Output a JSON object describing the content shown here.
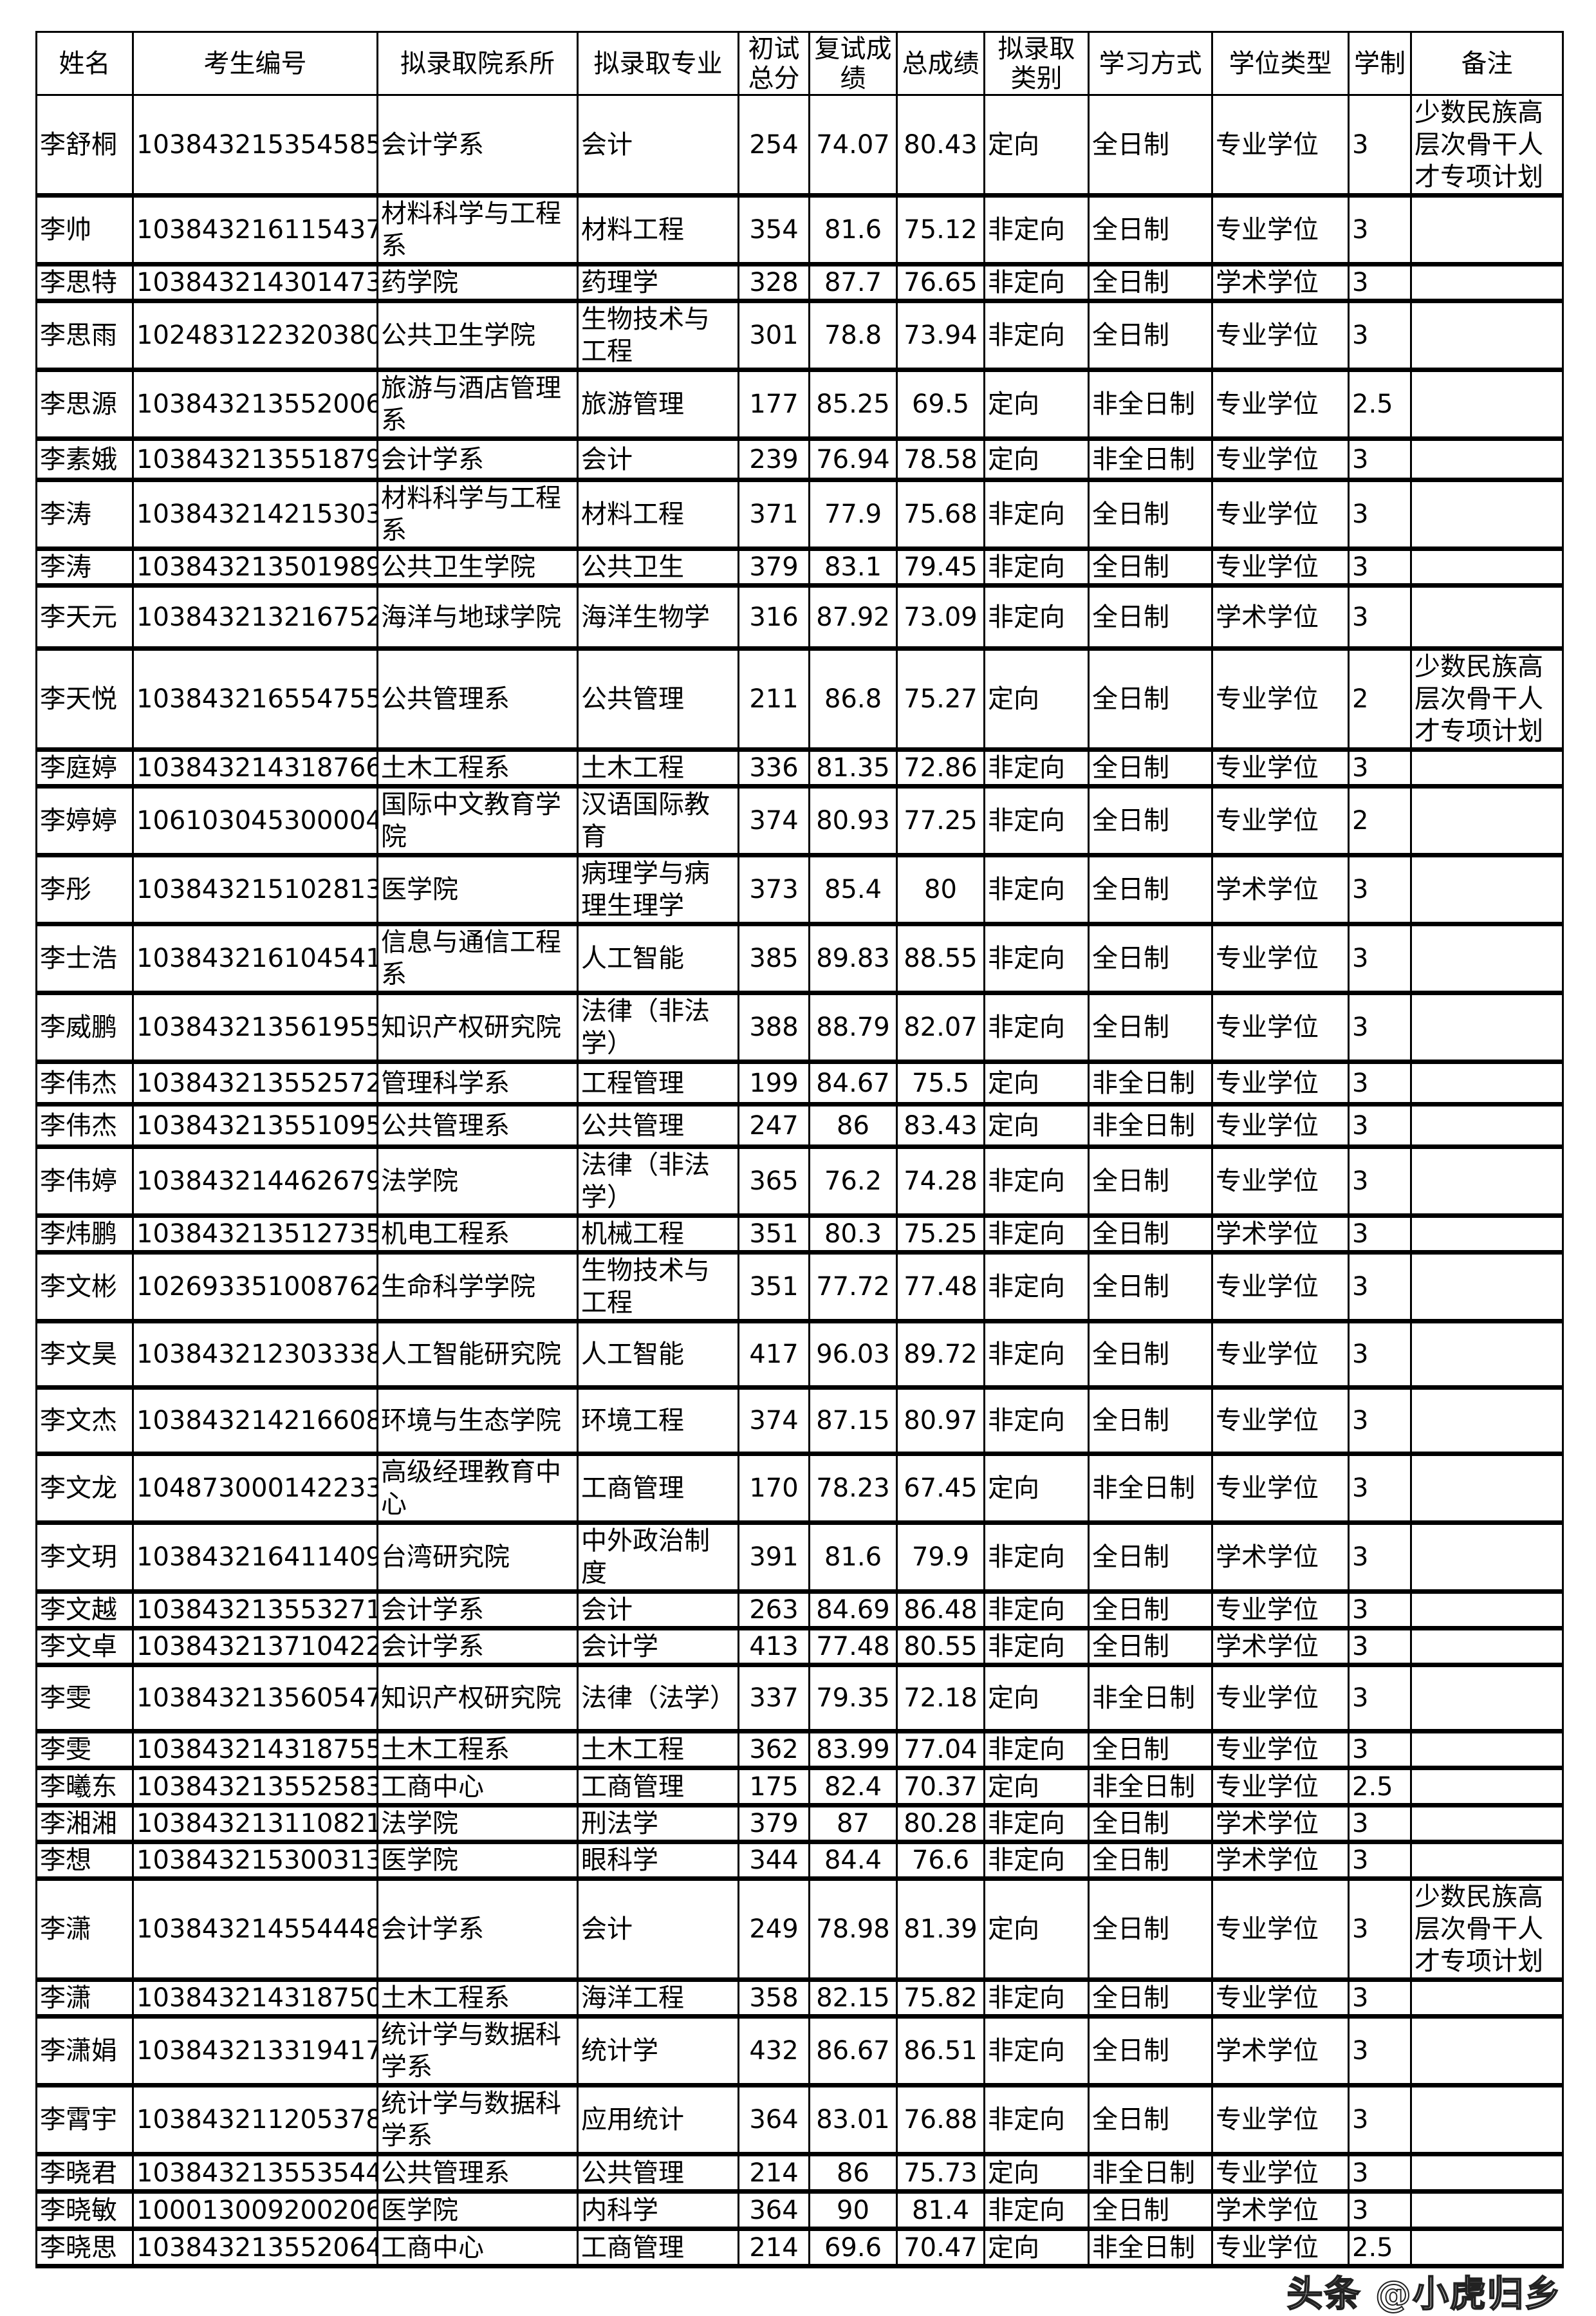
{
  "headers": [
    "姓名",
    "考生编号",
    "拟录取院系所",
    "拟录取专业",
    "初试总分",
    "复试成绩",
    "总成绩",
    "拟录取类别",
    "学习方式",
    "学位类型",
    "学制",
    "备注"
  ],
  "rows": [
    [
      "李舒桐",
      "103843215354585",
      "会计学系",
      "会计",
      "254",
      "74.07",
      "80.43",
      "定向",
      "全日制",
      "专业学位",
      "3",
      "少数民族高层次骨干人才专项计划"
    ],
    [
      "李帅",
      "103843216115437",
      "材料科学与工程系",
      "材料工程",
      "354",
      "81.6",
      "75.12",
      "非定向",
      "全日制",
      "专业学位",
      "3",
      ""
    ],
    [
      "李思特",
      "103843214301473",
      "药学院",
      "药理学",
      "328",
      "87.7",
      "76.65",
      "非定向",
      "全日制",
      "学术学位",
      "3",
      ""
    ],
    [
      "李思雨",
      "102483122320380",
      "公共卫生学院",
      "生物技术与工程",
      "301",
      "78.8",
      "73.94",
      "非定向",
      "全日制",
      "专业学位",
      "3",
      ""
    ],
    [
      "李思源",
      "103843213552006",
      "旅游与酒店管理系",
      "旅游管理",
      "177",
      "85.25",
      "69.5",
      "定向",
      "非全日制",
      "专业学位",
      "2.5",
      ""
    ],
    [
      "李素娥",
      "103843213551879",
      "会计学系",
      "会计",
      "239",
      "76.94",
      "78.58",
      "定向",
      "非全日制",
      "专业学位",
      "3",
      ""
    ],
    [
      "李涛",
      "103843214215303",
      "材料科学与工程系",
      "材料工程",
      "371",
      "77.9",
      "75.68",
      "非定向",
      "全日制",
      "专业学位",
      "3",
      ""
    ],
    [
      "李涛",
      "103843213501989",
      "公共卫生学院",
      "公共卫生",
      "379",
      "83.1",
      "79.45",
      "非定向",
      "全日制",
      "专业学位",
      "3",
      ""
    ],
    [
      "李天元",
      "103843213216752",
      "海洋与地球学院",
      "海洋生物学",
      "316",
      "87.92",
      "73.09",
      "非定向",
      "全日制",
      "学术学位",
      "3",
      ""
    ],
    [
      "李天悦",
      "103843216554755",
      "公共管理系",
      "公共管理",
      "211",
      "86.8",
      "75.27",
      "定向",
      "全日制",
      "专业学位",
      "2",
      "少数民族高层次骨干人才专项计划"
    ],
    [
      "李庭婷",
      "103843214318766",
      "土木工程系",
      "土木工程",
      "336",
      "81.35",
      "72.86",
      "非定向",
      "全日制",
      "专业学位",
      "3",
      ""
    ],
    [
      "李婷婷",
      "106103045300004",
      "国际中文教育学院",
      "汉语国际教育",
      "374",
      "80.93",
      "77.25",
      "非定向",
      "全日制",
      "专业学位",
      "2",
      ""
    ],
    [
      "李彤",
      "103843215102813",
      "医学院",
      "病理学与病理生理学",
      "373",
      "85.4",
      "80",
      "非定向",
      "全日制",
      "学术学位",
      "3",
      ""
    ],
    [
      "李士浩",
      "103843216104541",
      "信息与通信工程系",
      "人工智能",
      "385",
      "89.83",
      "88.55",
      "非定向",
      "全日制",
      "专业学位",
      "3",
      ""
    ],
    [
      "李威鹏",
      "103843213561955",
      "知识产权研究院",
      "法律（非法学）",
      "388",
      "88.79",
      "82.07",
      "非定向",
      "全日制",
      "专业学位",
      "3",
      ""
    ],
    [
      "李伟杰",
      "103843213552572",
      "管理科学系",
      "工程管理",
      "199",
      "84.67",
      "75.5",
      "定向",
      "非全日制",
      "专业学位",
      "3",
      ""
    ],
    [
      "李伟杰",
      "103843213551095",
      "公共管理系",
      "公共管理",
      "247",
      "86",
      "83.43",
      "定向",
      "非全日制",
      "专业学位",
      "3",
      ""
    ],
    [
      "李伟婷",
      "103843214462679",
      "法学院",
      "法律（非法学）",
      "365",
      "76.2",
      "74.28",
      "非定向",
      "全日制",
      "专业学位",
      "3",
      ""
    ],
    [
      "李炜鹏",
      "103843213512735",
      "机电工程系",
      "机械工程",
      "351",
      "80.3",
      "75.25",
      "非定向",
      "全日制",
      "学术学位",
      "3",
      ""
    ],
    [
      "李文彬",
      "102693351008762",
      "生命科学学院",
      "生物技术与工程",
      "351",
      "77.72",
      "77.48",
      "非定向",
      "全日制",
      "专业学位",
      "3",
      ""
    ],
    [
      "李文昊",
      "103843212303338",
      "人工智能研究院",
      "人工智能",
      "417",
      "96.03",
      "89.72",
      "非定向",
      "全日制",
      "专业学位",
      "3",
      ""
    ],
    [
      "李文杰",
      "103843214216608",
      "环境与生态学院",
      "环境工程",
      "374",
      "87.15",
      "80.97",
      "非定向",
      "全日制",
      "专业学位",
      "3",
      ""
    ],
    [
      "李文龙",
      "104873000142233",
      "高级经理教育中心",
      "工商管理",
      "170",
      "78.23",
      "67.45",
      "定向",
      "非全日制",
      "专业学位",
      "3",
      ""
    ],
    [
      "李文玥",
      "103843216411409",
      "台湾研究院",
      "中外政治制度",
      "391",
      "81.6",
      "79.9",
      "非定向",
      "全日制",
      "学术学位",
      "3",
      ""
    ],
    [
      "李文越",
      "103843213553271",
      "会计学系",
      "会计",
      "263",
      "84.69",
      "86.48",
      "非定向",
      "全日制",
      "专业学位",
      "3",
      ""
    ],
    [
      "李文卓",
      "103843213710422",
      "会计学系",
      "会计学",
      "413",
      "77.48",
      "80.55",
      "非定向",
      "全日制",
      "学术学位",
      "3",
      ""
    ],
    [
      "李雯",
      "103843213560547",
      "知识产权研究院",
      "法律（法学）",
      "337",
      "79.35",
      "72.18",
      "定向",
      "非全日制",
      "专业学位",
      "3",
      ""
    ],
    [
      "李雯",
      "103843214318755",
      "土木工程系",
      "土木工程",
      "362",
      "83.99",
      "77.04",
      "非定向",
      "全日制",
      "专业学位",
      "3",
      ""
    ],
    [
      "李曦东",
      "103843213552583",
      "工商中心",
      "工商管理",
      "175",
      "82.4",
      "70.37",
      "定向",
      "非全日制",
      "专业学位",
      "2.5",
      ""
    ],
    [
      "李湘湘",
      "103843213110821",
      "法学院",
      "刑法学",
      "379",
      "87",
      "80.28",
      "非定向",
      "全日制",
      "学术学位",
      "3",
      ""
    ],
    [
      "李想",
      "103843215300313",
      "医学院",
      "眼科学",
      "344",
      "84.4",
      "76.6",
      "非定向",
      "全日制",
      "学术学位",
      "3",
      ""
    ],
    [
      "李潇",
      "103843214554448",
      "会计学系",
      "会计",
      "249",
      "78.98",
      "81.39",
      "定向",
      "全日制",
      "专业学位",
      "3",
      "少数民族高层次骨干人才专项计划"
    ],
    [
      "李潇",
      "103843214318750",
      "土木工程系",
      "海洋工程",
      "358",
      "82.15",
      "75.82",
      "非定向",
      "全日制",
      "专业学位",
      "3",
      ""
    ],
    [
      "李潇娟",
      "103843213319417",
      "统计学与数据科学系",
      "统计学",
      "432",
      "86.67",
      "86.51",
      "非定向",
      "全日制",
      "学术学位",
      "3",
      ""
    ],
    [
      "李霄宇",
      "103843211205378",
      "统计学与数据科学系",
      "应用统计",
      "364",
      "83.01",
      "76.88",
      "非定向",
      "全日制",
      "专业学位",
      "3",
      ""
    ],
    [
      "李晓君",
      "103843213553544",
      "公共管理系",
      "公共管理",
      "214",
      "86",
      "75.73",
      "定向",
      "非全日制",
      "专业学位",
      "3",
      ""
    ],
    [
      "李晓敏",
      "100013009200206",
      "医学院",
      "内科学",
      "364",
      "90",
      "81.4",
      "非定向",
      "全日制",
      "学术学位",
      "3",
      ""
    ],
    [
      "李晓思",
      "103843213552064",
      "工商中心",
      "工商管理",
      "214",
      "69.6",
      "70.47",
      "定向",
      "非全日制",
      "专业学位",
      "2.5",
      ""
    ]
  ],
  "watermark": "头条 @小虎归乡"
}
